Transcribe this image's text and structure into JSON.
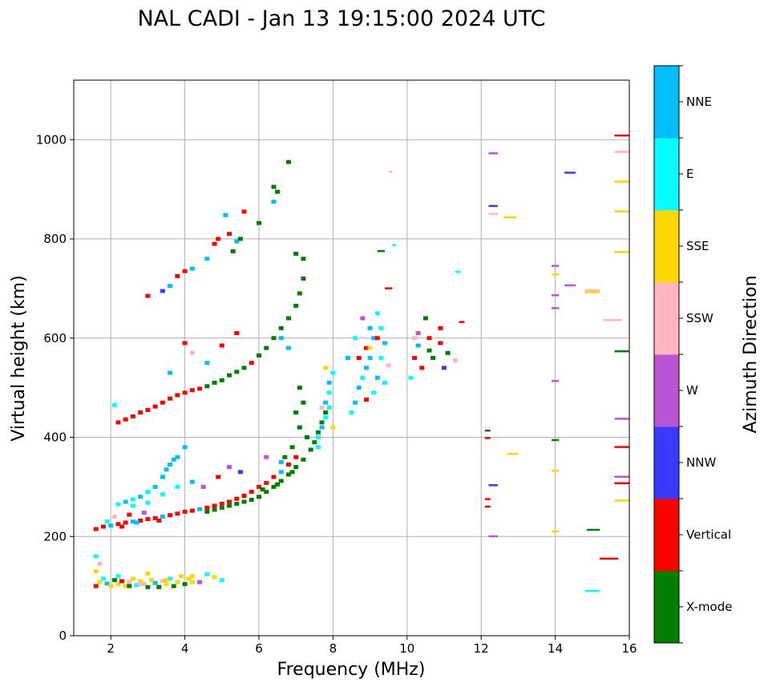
{
  "chart_data": {
    "type": "scatter",
    "title": "NAL CADI - Jan 13 19:15:00 2024 UTC",
    "xlabel": "Frequency (MHz)",
    "ylabel": "Virtual height (km)",
    "xlim": [
      1,
      16
    ],
    "ylim": [
      0,
      1120
    ],
    "xticks": [
      2,
      4,
      6,
      8,
      10,
      12,
      14,
      16
    ],
    "yticks": [
      0,
      200,
      400,
      600,
      800,
      1000
    ],
    "grid": true,
    "colorbar": {
      "label": "Azimuth Direction",
      "categories": [
        {
          "name": "X-mode",
          "color": "#008000"
        },
        {
          "name": "Vertical",
          "color": "#ff0000"
        },
        {
          "name": "NNW",
          "color": "#3a3aff"
        },
        {
          "name": "W",
          "color": "#ba55d3"
        },
        {
          "name": "SSW",
          "color": "#ffb6c1"
        },
        {
          "name": "SSE",
          "color": "#ffd700"
        },
        {
          "name": "E",
          "color": "#00ffff"
        },
        {
          "name": "NNE",
          "color": "#00bfff"
        }
      ]
    },
    "points_format": "[frequency_MHz, virtual_height_km, category_index]",
    "points": [
      [
        1.6,
        100,
        1
      ],
      [
        1.7,
        108,
        5
      ],
      [
        1.8,
        115,
        6
      ],
      [
        1.9,
        105,
        7
      ],
      [
        2.0,
        100,
        5
      ],
      [
        2.1,
        112,
        0
      ],
      [
        2.2,
        104,
        5
      ],
      [
        2.3,
        110,
        1
      ],
      [
        2.4,
        100,
        5
      ],
      [
        2.5,
        108,
        4
      ],
      [
        2.6,
        115,
        5
      ],
      [
        2.7,
        102,
        6
      ],
      [
        2.8,
        110,
        5
      ],
      [
        2.9,
        104,
        4
      ],
      [
        3.0,
        98,
        0
      ],
      [
        3.1,
        112,
        5
      ],
      [
        3.2,
        106,
        7
      ],
      [
        3.3,
        100,
        5
      ],
      [
        3.4,
        110,
        4
      ],
      [
        3.5,
        104,
        5
      ],
      [
        3.6,
        115,
        6
      ],
      [
        3.7,
        100,
        0
      ],
      [
        3.8,
        108,
        5
      ],
      [
        3.9,
        120,
        5
      ],
      [
        4.0,
        104,
        0
      ],
      [
        4.1,
        115,
        5
      ],
      [
        4.2,
        120,
        5
      ],
      [
        4.4,
        108,
        3
      ],
      [
        4.6,
        124,
        6
      ],
      [
        4.8,
        118,
        5
      ],
      [
        5.0,
        112,
        6
      ],
      [
        1.6,
        130,
        5
      ],
      [
        1.6,
        160,
        6
      ],
      [
        1.7,
        145,
        4
      ],
      [
        2.5,
        100,
        0
      ],
      [
        3.3,
        98,
        0
      ],
      [
        2.2,
        120,
        6
      ],
      [
        3.0,
        125,
        5
      ],
      [
        2.8,
        104,
        4
      ],
      [
        3.5,
        112,
        5
      ],
      [
        4.2,
        108,
        5
      ],
      [
        1.6,
        215,
        1
      ],
      [
        1.8,
        220,
        1
      ],
      [
        2.0,
        222,
        7
      ],
      [
        2.2,
        225,
        1
      ],
      [
        2.4,
        228,
        1
      ],
      [
        2.6,
        230,
        7
      ],
      [
        2.8,
        232,
        1
      ],
      [
        3.0,
        235,
        1
      ],
      [
        3.2,
        237,
        1
      ],
      [
        3.4,
        240,
        7
      ],
      [
        3.6,
        243,
        1
      ],
      [
        3.8,
        246,
        1
      ],
      [
        4.0,
        250,
        1
      ],
      [
        4.2,
        252,
        1
      ],
      [
        4.4,
        255,
        7
      ],
      [
        4.6,
        258,
        1
      ],
      [
        4.8,
        262,
        1
      ],
      [
        5.0,
        266,
        1
      ],
      [
        5.2,
        270,
        1
      ],
      [
        5.4,
        276,
        1
      ],
      [
        5.6,
        282,
        1
      ],
      [
        5.8,
        290,
        1
      ],
      [
        6.0,
        300,
        1
      ],
      [
        6.2,
        308,
        1
      ],
      [
        6.4,
        320,
        1
      ],
      [
        6.6,
        330,
        7
      ],
      [
        6.8,
        345,
        1
      ],
      [
        7.0,
        360,
        1
      ],
      [
        2.3,
        220,
        1
      ],
      [
        2.7,
        228,
        7
      ],
      [
        3.3,
        232,
        1
      ],
      [
        1.9,
        230,
        6
      ],
      [
        2.1,
        240,
        4
      ],
      [
        2.5,
        244,
        1
      ],
      [
        2.9,
        248,
        3
      ],
      [
        4.6,
        250,
        0
      ],
      [
        4.8,
        254,
        0
      ],
      [
        5.0,
        258,
        0
      ],
      [
        5.2,
        262,
        0
      ],
      [
        5.4,
        266,
        0
      ],
      [
        5.6,
        270,
        0
      ],
      [
        5.8,
        274,
        0
      ],
      [
        6.0,
        280,
        0
      ],
      [
        6.2,
        290,
        0
      ],
      [
        6.4,
        300,
        0
      ],
      [
        6.6,
        312,
        0
      ],
      [
        6.8,
        325,
        0
      ],
      [
        7.0,
        340,
        0
      ],
      [
        7.2,
        355,
        0
      ],
      [
        7.4,
        375,
        0
      ],
      [
        7.5,
        390,
        0
      ],
      [
        7.6,
        410,
        0
      ],
      [
        7.7,
        430,
        0
      ],
      [
        7.8,
        450,
        0
      ],
      [
        6.1,
        295,
        0
      ],
      [
        6.5,
        305,
        0
      ],
      [
        6.9,
        330,
        0
      ],
      [
        7.1,
        420,
        0
      ],
      [
        7.0,
        450,
        0
      ],
      [
        7.2,
        470,
        0
      ],
      [
        7.1,
        500,
        0
      ],
      [
        6.9,
        380,
        0
      ],
      [
        7.3,
        400,
        0
      ],
      [
        6.7,
        360,
        0
      ],
      [
        7.6,
        400,
        6
      ],
      [
        7.7,
        420,
        7
      ],
      [
        7.8,
        440,
        6
      ],
      [
        7.8,
        470,
        7
      ],
      [
        7.9,
        490,
        6
      ],
      [
        7.9,
        510,
        7
      ],
      [
        8.0,
        530,
        6
      ],
      [
        7.8,
        540,
        5
      ],
      [
        8.0,
        420,
        5
      ],
      [
        7.7,
        460,
        4
      ],
      [
        7.6,
        380,
        6
      ],
      [
        7.9,
        460,
        6
      ],
      [
        2.2,
        265,
        6
      ],
      [
        2.4,
        270,
        7
      ],
      [
        2.6,
        275,
        6
      ],
      [
        2.8,
        280,
        7
      ],
      [
        3.0,
        290,
        6
      ],
      [
        3.2,
        300,
        7
      ],
      [
        3.4,
        320,
        7
      ],
      [
        3.5,
        335,
        7
      ],
      [
        3.6,
        345,
        7
      ],
      [
        3.7,
        355,
        7
      ],
      [
        3.8,
        360,
        7
      ],
      [
        4.0,
        380,
        7
      ],
      [
        3.0,
        268,
        6
      ],
      [
        3.4,
        285,
        6
      ],
      [
        3.8,
        300,
        6
      ],
      [
        2.6,
        262,
        6
      ],
      [
        4.2,
        310,
        7
      ],
      [
        4.5,
        300,
        3
      ],
      [
        4.9,
        320,
        1
      ],
      [
        5.2,
        340,
        3
      ],
      [
        5.5,
        330,
        2
      ],
      [
        6.2,
        360,
        3
      ],
      [
        6.6,
        350,
        7
      ],
      [
        2.2,
        430,
        1
      ],
      [
        2.4,
        436,
        1
      ],
      [
        2.6,
        442,
        1
      ],
      [
        2.8,
        450,
        1
      ],
      [
        3.0,
        455,
        1
      ],
      [
        3.2,
        462,
        1
      ],
      [
        3.4,
        470,
        1
      ],
      [
        3.6,
        478,
        1
      ],
      [
        3.8,
        485,
        1
      ],
      [
        4.0,
        490,
        1
      ],
      [
        4.2,
        495,
        1
      ],
      [
        4.4,
        498,
        1
      ],
      [
        4.6,
        503,
        0
      ],
      [
        4.8,
        510,
        0
      ],
      [
        5.0,
        515,
        0
      ],
      [
        5.2,
        525,
        0
      ],
      [
        5.4,
        532,
        0
      ],
      [
        5.6,
        540,
        0
      ],
      [
        5.8,
        550,
        1
      ],
      [
        6.0,
        565,
        0
      ],
      [
        6.2,
        580,
        0
      ],
      [
        6.4,
        600,
        0
      ],
      [
        6.6,
        620,
        0
      ],
      [
        6.8,
        640,
        0
      ],
      [
        7.0,
        665,
        0
      ],
      [
        7.1,
        690,
        0
      ],
      [
        7.2,
        720,
        0
      ],
      [
        7.2,
        760,
        0
      ],
      [
        7.0,
        770,
        0
      ],
      [
        3.6,
        530,
        7
      ],
      [
        4.0,
        590,
        1
      ],
      [
        4.2,
        570,
        4
      ],
      [
        4.6,
        550,
        7
      ],
      [
        5.0,
        585,
        1
      ],
      [
        5.4,
        610,
        1
      ],
      [
        6.6,
        600,
        7
      ],
      [
        6.8,
        580,
        7
      ],
      [
        2.1,
        465,
        6
      ],
      [
        3.0,
        685,
        1
      ],
      [
        3.4,
        695,
        2
      ],
      [
        3.6,
        705,
        7
      ],
      [
        3.8,
        725,
        1
      ],
      [
        4.0,
        735,
        1
      ],
      [
        4.2,
        740,
        7
      ],
      [
        4.6,
        760,
        7
      ],
      [
        4.8,
        790,
        1
      ],
      [
        4.9,
        800,
        1
      ],
      [
        5.2,
        810,
        1
      ],
      [
        5.4,
        795,
        7
      ],
      [
        5.3,
        775,
        0
      ],
      [
        5.5,
        800,
        0
      ],
      [
        5.1,
        848,
        7
      ],
      [
        5.6,
        855,
        1
      ],
      [
        6.4,
        905,
        0
      ],
      [
        6.5,
        895,
        0
      ],
      [
        6.4,
        875,
        7
      ],
      [
        6.8,
        955,
        0
      ],
      [
        6.0,
        832,
        0
      ],
      [
        8.5,
        450,
        6
      ],
      [
        8.6,
        470,
        7
      ],
      [
        8.7,
        500,
        7
      ],
      [
        8.8,
        520,
        6
      ],
      [
        8.9,
        540,
        7
      ],
      [
        9.0,
        560,
        7
      ],
      [
        8.9,
        580,
        1
      ],
      [
        9.1,
        600,
        7
      ],
      [
        9.0,
        620,
        7
      ],
      [
        8.8,
        640,
        3
      ],
      [
        9.2,
        650,
        6
      ],
      [
        9.2,
        520,
        7
      ],
      [
        9.3,
        560,
        6
      ],
      [
        9.4,
        590,
        7
      ],
      [
        9.3,
        620,
        6
      ],
      [
        9.4,
        510,
        6
      ],
      [
        9.1,
        490,
        6
      ],
      [
        8.4,
        560,
        7
      ],
      [
        8.6,
        600,
        6
      ],
      [
        8.7,
        560,
        1
      ],
      [
        9.0,
        580,
        5
      ],
      [
        9.5,
        545,
        4
      ],
      [
        9.2,
        600,
        1
      ],
      [
        8.9,
        476,
        1
      ],
      [
        10.1,
        520,
        6
      ],
      [
        10.2,
        560,
        1
      ],
      [
        10.3,
        585,
        7
      ],
      [
        10.3,
        610,
        3
      ],
      [
        10.5,
        640,
        0
      ],
      [
        10.6,
        600,
        1
      ],
      [
        10.7,
        560,
        0
      ],
      [
        10.9,
        620,
        1
      ],
      [
        10.9,
        590,
        1
      ],
      [
        11.1,
        570,
        0
      ],
      [
        10.4,
        540,
        1
      ],
      [
        10.6,
        575,
        0
      ],
      [
        11.3,
        555,
        4
      ],
      [
        11.0,
        540,
        2
      ],
      [
        10.2,
        600,
        4
      ]
    ],
    "segments_format": "[freq_start_MHz, freq_end_MHz, virtual_height_km, category_index]",
    "segments": [
      [
        12.2,
        12.45,
        972,
        3
      ],
      [
        12.2,
        12.45,
        866,
        2
      ],
      [
        12.2,
        12.45,
        850,
        4
      ],
      [
        12.6,
        12.95,
        843,
        5
      ],
      [
        14.25,
        14.55,
        933,
        2
      ],
      [
        13.9,
        14.1,
        745,
        3
      ],
      [
        13.9,
        14.1,
        728,
        5
      ],
      [
        13.9,
        14.1,
        686,
        3
      ],
      [
        13.9,
        14.1,
        660,
        3
      ],
      [
        14.25,
        14.55,
        706,
        3
      ],
      [
        14.8,
        15.2,
        696,
        4
      ],
      [
        14.8,
        15.2,
        692,
        5
      ],
      [
        15.3,
        15.8,
        636,
        4
      ],
      [
        15.6,
        16,
        1008,
        1
      ],
      [
        15.6,
        16,
        975,
        4
      ],
      [
        15.6,
        16,
        915,
        5
      ],
      [
        15.6,
        16,
        855,
        5
      ],
      [
        15.6,
        16,
        773,
        5
      ],
      [
        15.6,
        16,
        573,
        0
      ],
      [
        15.6,
        16,
        437,
        3
      ],
      [
        15.6,
        16,
        380,
        1
      ],
      [
        15.6,
        16,
        320,
        3
      ],
      [
        15.6,
        16,
        307,
        1
      ],
      [
        15.6,
        16,
        272,
        5
      ],
      [
        15.2,
        15.7,
        155,
        1
      ],
      [
        14.85,
        15.2,
        213,
        0
      ],
      [
        14.8,
        15.2,
        90,
        6
      ],
      [
        13.9,
        14.1,
        513,
        3
      ],
      [
        13.9,
        14.1,
        394,
        0
      ],
      [
        13.9,
        14.1,
        332,
        5
      ],
      [
        13.9,
        14.1,
        210,
        5
      ],
      [
        12.2,
        12.45,
        303,
        2
      ],
      [
        12.2,
        12.45,
        200,
        3
      ],
      [
        12.1,
        12.25,
        275,
        1
      ],
      [
        12.1,
        12.25,
        260,
        1
      ],
      [
        12.1,
        12.25,
        398,
        1
      ],
      [
        12.1,
        12.25,
        413,
        0
      ],
      [
        12.7,
        13,
        366,
        5
      ],
      [
        11.3,
        11.45,
        733,
        6
      ],
      [
        11.4,
        11.55,
        632,
        1
      ],
      [
        9.4,
        9.6,
        700,
        1
      ],
      [
        9.2,
        9.4,
        775,
        0
      ],
      [
        9.6,
        9.7,
        787,
        6
      ],
      [
        9.5,
        9.6,
        935,
        4
      ]
    ]
  }
}
